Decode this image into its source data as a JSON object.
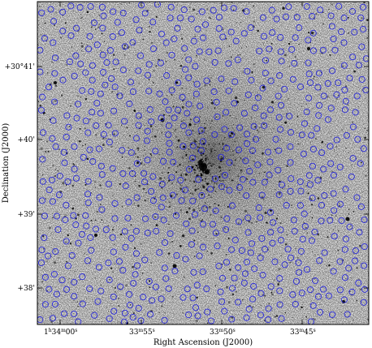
{
  "axes": {
    "xlabel": "Right Ascension (J2000)",
    "ylabel": "Declination (J2000)",
    "x_ticks": [
      {
        "label": "1h34m00s",
        "base": "1",
        "h": "h",
        "mid": "34",
        "m": "m",
        "tail": "00",
        "s": "s"
      },
      {
        "label": "33m55s",
        "mid": "33",
        "m": "m",
        "tail": "55",
        "s": "s"
      },
      {
        "label": "33m50s",
        "mid": "33",
        "m": "m",
        "tail": "50",
        "s": "s"
      },
      {
        "label": "33m45s",
        "mid": "33",
        "m": "m",
        "tail": "45",
        "s": "s"
      }
    ],
    "y_ticks": [
      {
        "label": "+30°41'"
      },
      {
        "label": "+40'"
      },
      {
        "label": "+39'"
      },
      {
        "label": "+38'"
      }
    ]
  },
  "image": {
    "description_color": "#000000",
    "circle_color": "#2a2ad8"
  }
}
